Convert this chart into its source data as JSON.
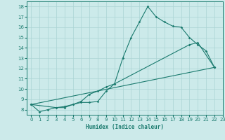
{
  "xlabel": "Humidex (Indice chaleur)",
  "bg_color": "#cceaea",
  "line_color": "#1a7a6e",
  "grid_color": "#aad4d4",
  "xlim": [
    -0.5,
    23
  ],
  "ylim": [
    7.5,
    18.5
  ],
  "xticks": [
    0,
    1,
    2,
    3,
    4,
    5,
    6,
    7,
    8,
    9,
    10,
    11,
    12,
    13,
    14,
    15,
    16,
    17,
    18,
    19,
    20,
    21,
    22,
    23
  ],
  "yticks": [
    8,
    9,
    10,
    11,
    12,
    13,
    14,
    15,
    16,
    17,
    18
  ],
  "line1_x": [
    0,
    1,
    2,
    3,
    4,
    5,
    6,
    7,
    8,
    9,
    10,
    11,
    12,
    13,
    14,
    15,
    16,
    17,
    18,
    19,
    20,
    21,
    22
  ],
  "line1_y": [
    8.5,
    7.8,
    8.0,
    8.2,
    8.2,
    8.5,
    8.7,
    8.7,
    8.8,
    9.8,
    10.5,
    13.0,
    15.0,
    16.5,
    18.0,
    17.0,
    16.5,
    16.1,
    16.0,
    15.0,
    14.3,
    13.7,
    12.1
  ],
  "line2_x": [
    0,
    3,
    4,
    5,
    6,
    7,
    8,
    9,
    10,
    19,
    20,
    22
  ],
  "line2_y": [
    8.5,
    8.2,
    8.3,
    8.5,
    8.8,
    9.5,
    9.8,
    10.2,
    10.5,
    14.3,
    14.5,
    12.1
  ],
  "line3_x": [
    0,
    22
  ],
  "line3_y": [
    8.5,
    12.1
  ]
}
